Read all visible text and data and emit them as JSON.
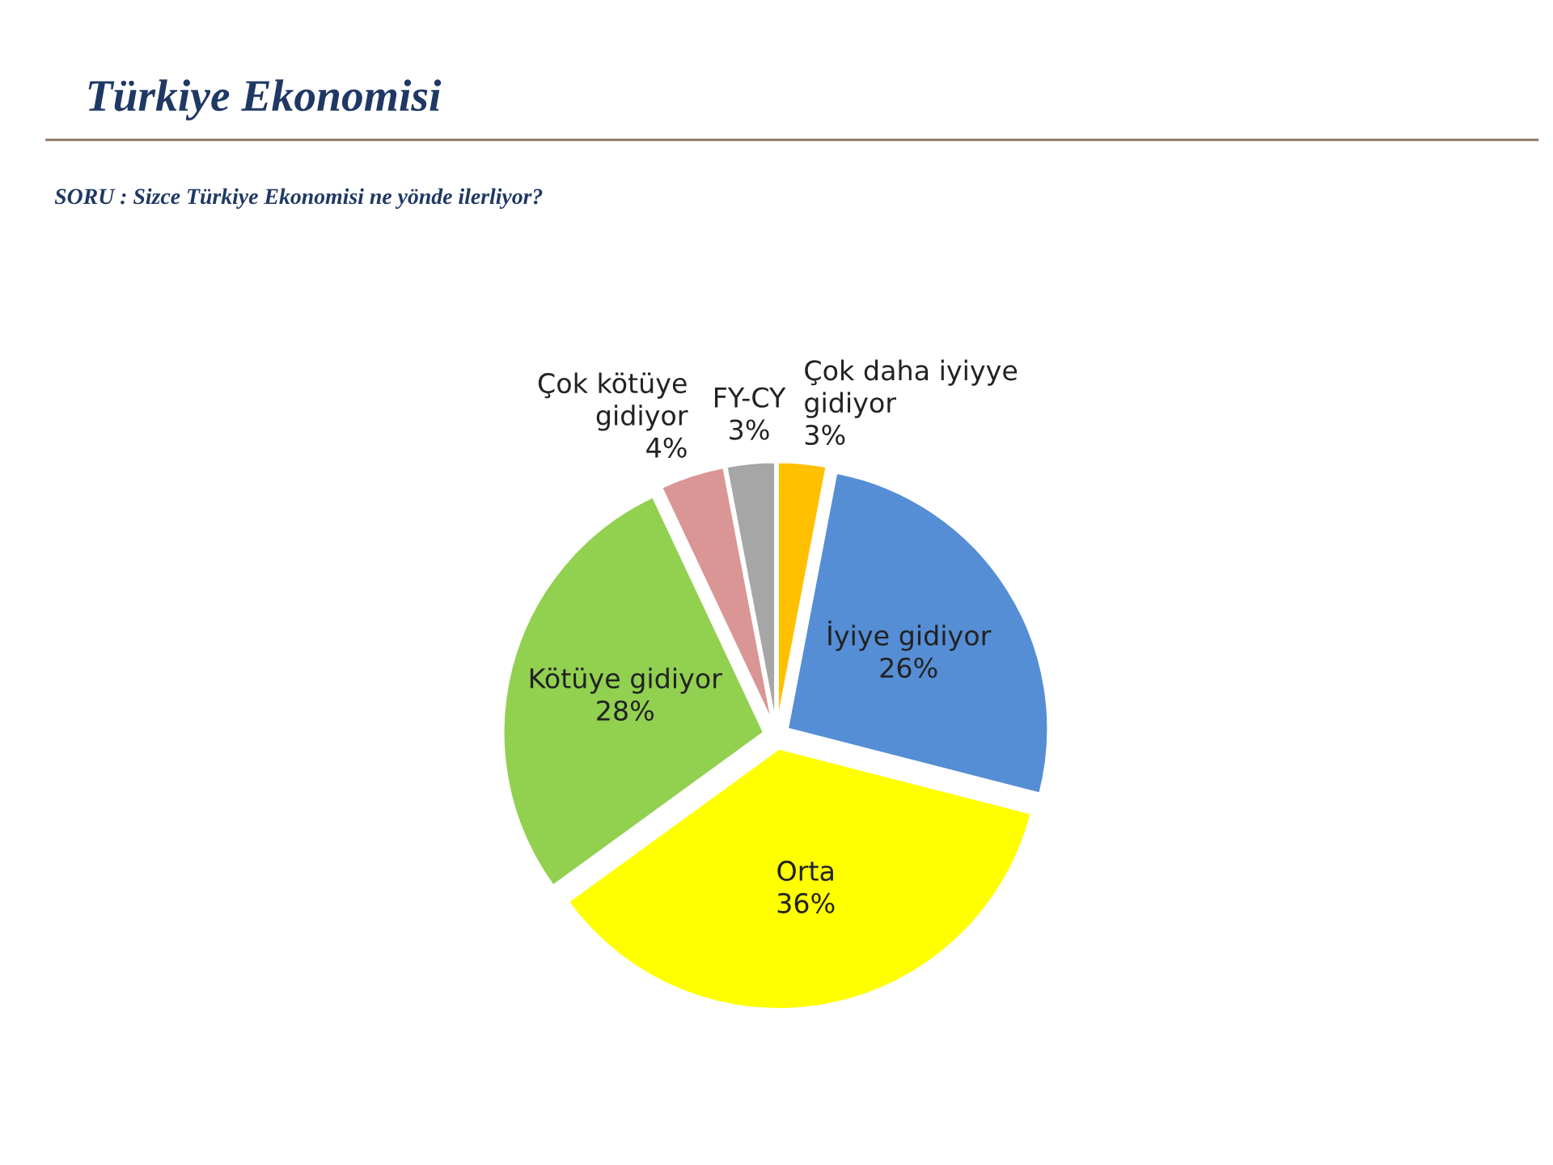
{
  "chart_data": {
    "type": "pie",
    "title": "Türkiye Ekonomisi",
    "subtitle": "SORU : Sizce Türkiye Ekonomisi ne yönde ilerliyor?",
    "categories": [
      "Çok daha iyiyye\ngidiyor",
      "İyiye gidiyor",
      "Orta",
      "Kötüye gidiyor",
      "Çok kötüye\ngidiyor",
      "FY-CY"
    ],
    "values": [
      3,
      26,
      36,
      28,
      4,
      3
    ],
    "colors": [
      "#ffc000",
      "#558ed5",
      "#ffff00",
      "#92d050",
      "#d99694",
      "#a6a6a6"
    ],
    "data_labels": true,
    "value_labels": [
      "3%",
      "26%",
      "36%",
      "28%",
      "4%",
      "3%"
    ],
    "legend": false
  }
}
